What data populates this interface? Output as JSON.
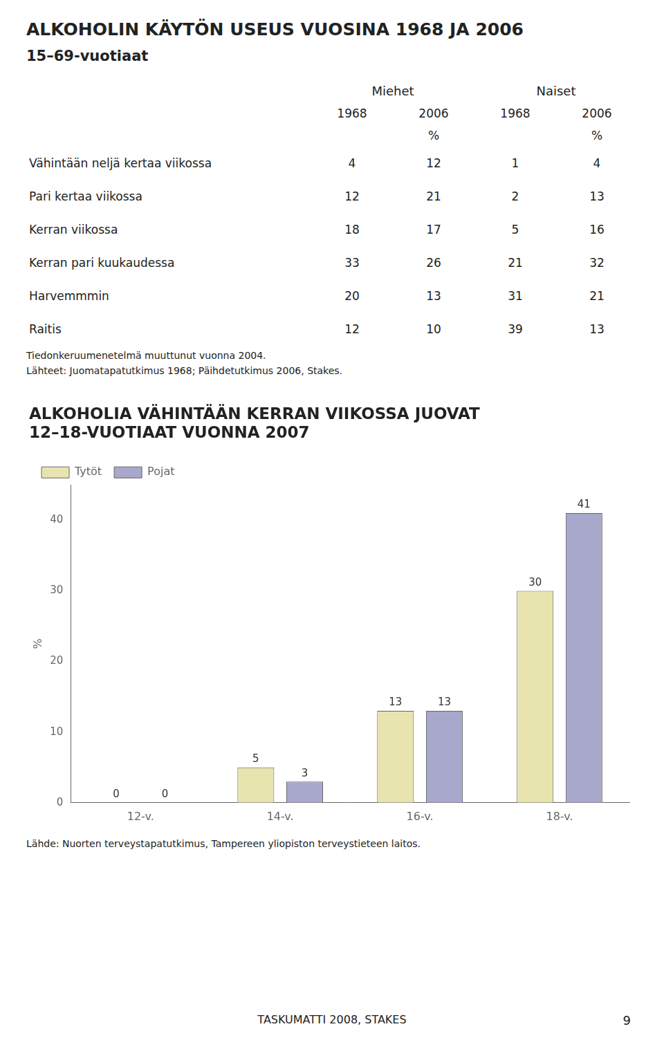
{
  "chart_data": [
    {
      "type": "table",
      "title": "ALKOHOLIN KÄYTÖN USEUS VUOSINA 1968 JA 2006",
      "subtitle": "15–69-vuotiaat",
      "column_groups": [
        {
          "name": "Miehet",
          "columns": [
            {
              "label": "1968"
            },
            {
              "label": "2006",
              "unit": "%"
            }
          ]
        },
        {
          "name": "Naiset",
          "columns": [
            {
              "label": "1968"
            },
            {
              "label": "2006",
              "unit": "%"
            }
          ]
        }
      ],
      "rows": [
        {
          "label": "Vähintään neljä kertaa viikossa",
          "values": [
            4,
            12,
            1,
            4
          ]
        },
        {
          "label": "Pari kertaa viikossa",
          "values": [
            12,
            21,
            2,
            13
          ]
        },
        {
          "label": "Kerran viikossa",
          "values": [
            18,
            17,
            5,
            16
          ]
        },
        {
          "label": "Kerran pari kuukaudessa",
          "values": [
            33,
            26,
            21,
            32
          ]
        },
        {
          "label": "Harvemmmin",
          "values": [
            20,
            13,
            31,
            21
          ]
        },
        {
          "label": "Raitis",
          "values": [
            12,
            10,
            39,
            13
          ]
        }
      ],
      "annotations": [
        "Tiedonkeruumenetelmä muuttunut vuonna 2004.",
        "Lähteet: Juomatapatutkimus 1968; Päihdetutkimus 2006, Stakes."
      ]
    },
    {
      "type": "bar",
      "title": [
        "ALKOHOLIA VÄHINTÄÄN KERRAN VIIKOSSA JUOVAT",
        "12–18-VUOTIAAT VUONNA 2007"
      ],
      "categories": [
        "12-v.",
        "14-v.",
        "16-v.",
        "18-v."
      ],
      "series": [
        {
          "name": "Tytöt",
          "color": "#e8e4b0",
          "values": [
            0,
            5,
            13,
            30
          ]
        },
        {
          "name": "Pojat",
          "color": "#a8a8cc",
          "values": [
            0,
            3,
            13,
            41
          ]
        }
      ],
      "ylabel": "%",
      "ylim": [
        0,
        45
      ],
      "yticks": [
        0,
        10,
        20,
        30,
        40
      ],
      "grid": false,
      "legend": "upper left",
      "data_labels": true,
      "annotations": [
        "Lähde: Nuorten terveystapatutkimus, Tampereen yliopiston terveystieteen laitos."
      ]
    }
  ],
  "annotations": [
    "TASKUMATTI 2008, STAKES",
    "9"
  ]
}
